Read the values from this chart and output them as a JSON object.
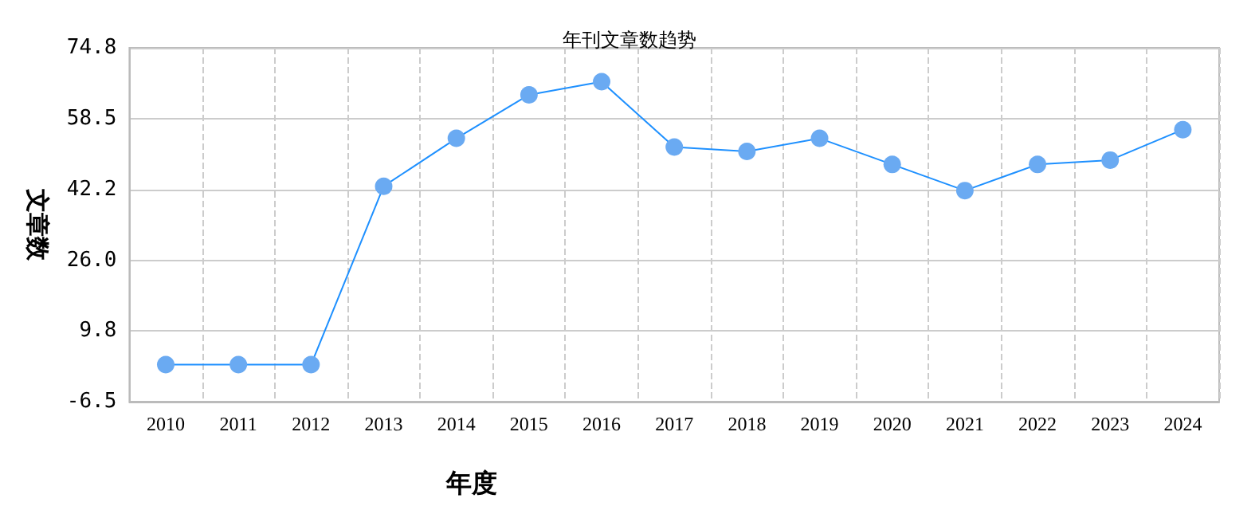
{
  "chart_data": {
    "type": "line",
    "title": "年刊文章数趋势",
    "xlabel": "年度",
    "ylabel": "文章数",
    "categories": [
      "2010",
      "2011",
      "2012",
      "2013",
      "2014",
      "2015",
      "2016",
      "2017",
      "2018",
      "2019",
      "2020",
      "2021",
      "2022",
      "2023",
      "2024"
    ],
    "series": [
      {
        "color": "#1e90ff",
        "values": [
          2,
          2,
          2,
          43,
          54,
          64,
          67,
          52,
          51,
          54,
          48,
          42,
          48,
          49,
          56
        ]
      }
    ],
    "ylim": [
      -6.5,
      74.8
    ],
    "yticks": [
      -6.5,
      9.8,
      {
        "value": 26,
        "label": "26.0"
      },
      42.2,
      58.5,
      74.8
    ],
    "grid": true,
    "marker": "circle",
    "line_style": "solid"
  }
}
